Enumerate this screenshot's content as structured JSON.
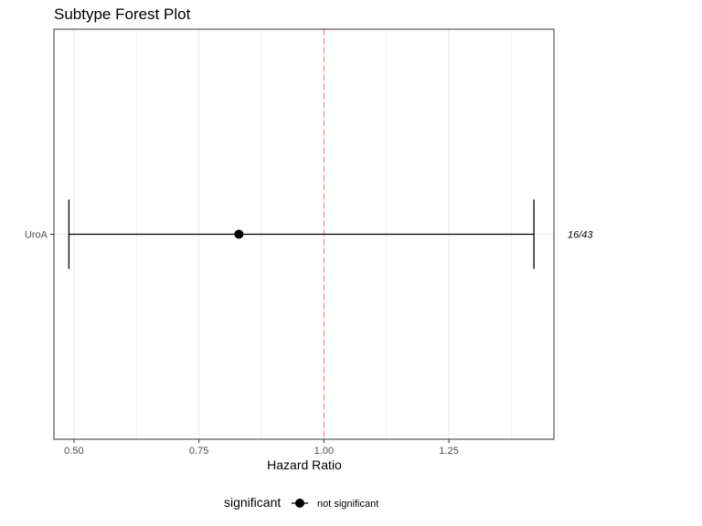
{
  "chart_data": {
    "type": "scatter",
    "title": "Subtype Forest Plot",
    "xlabel": "Hazard Ratio",
    "ylabel": "",
    "xlim": [
      0.46,
      1.46
    ],
    "x_ticks": [
      0.5,
      0.75,
      1.0,
      1.25
    ],
    "x_tick_labels": [
      "0.50",
      "0.75",
      "1.00",
      "1.25"
    ],
    "reference_line": {
      "x": 1.0,
      "style": "dashed",
      "color": "#f8766d"
    },
    "categories": [
      "UroA"
    ],
    "points": [
      {
        "label": "UroA",
        "hr": 0.83,
        "lower": 0.49,
        "upper": 1.42,
        "annotation": "16/43",
        "significant": "not significant"
      }
    ],
    "grid": true,
    "legend": {
      "position": "bottom",
      "title": "significant",
      "entries": [
        "not significant"
      ]
    },
    "colors": {
      "point": "#000000",
      "errorbar": "#000000",
      "refline": "#f8766d",
      "grid": "#ebebeb",
      "border": "#333333"
    }
  }
}
